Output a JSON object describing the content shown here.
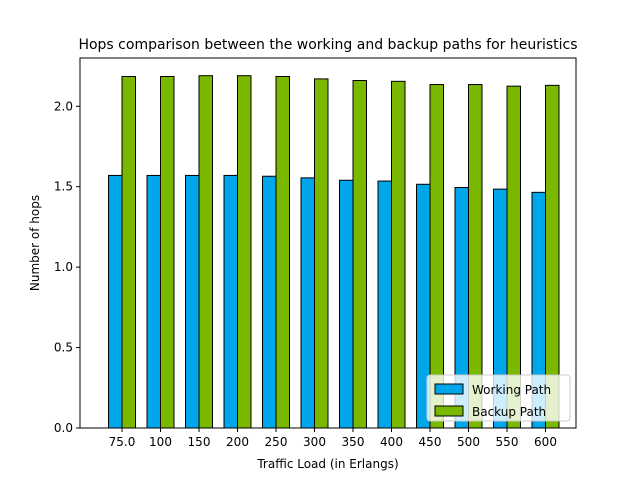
{
  "chart_data": {
    "type": "bar",
    "title": "Hops comparison between the working and backup paths for heuristics",
    "xlabel": "Traffic Load (in Erlangs)",
    "ylabel": "Number of hops",
    "categories": [
      "75.0",
      "100",
      "150",
      "200",
      "250",
      "300",
      "350",
      "400",
      "450",
      "500",
      "550",
      "600"
    ],
    "series": [
      {
        "name": "Working Path",
        "color": "#00a6ea",
        "values": [
          1.57,
          1.57,
          1.57,
          1.57,
          1.565,
          1.555,
          1.54,
          1.535,
          1.515,
          1.495,
          1.485,
          1.465
        ]
      },
      {
        "name": "Backup Path",
        "color": "#7ab800",
        "values": [
          2.185,
          2.185,
          2.19,
          2.19,
          2.185,
          2.17,
          2.16,
          2.155,
          2.135,
          2.135,
          2.125,
          2.13
        ]
      }
    ],
    "ylim": [
      0,
      2.3
    ],
    "yticks": [
      "0.0",
      "0.5",
      "1.0",
      "1.5",
      "2.0"
    ],
    "ytick_values": [
      0,
      0.5,
      1.0,
      1.5,
      2.0
    ],
    "legend_position": "lower-right",
    "grid": false
  }
}
